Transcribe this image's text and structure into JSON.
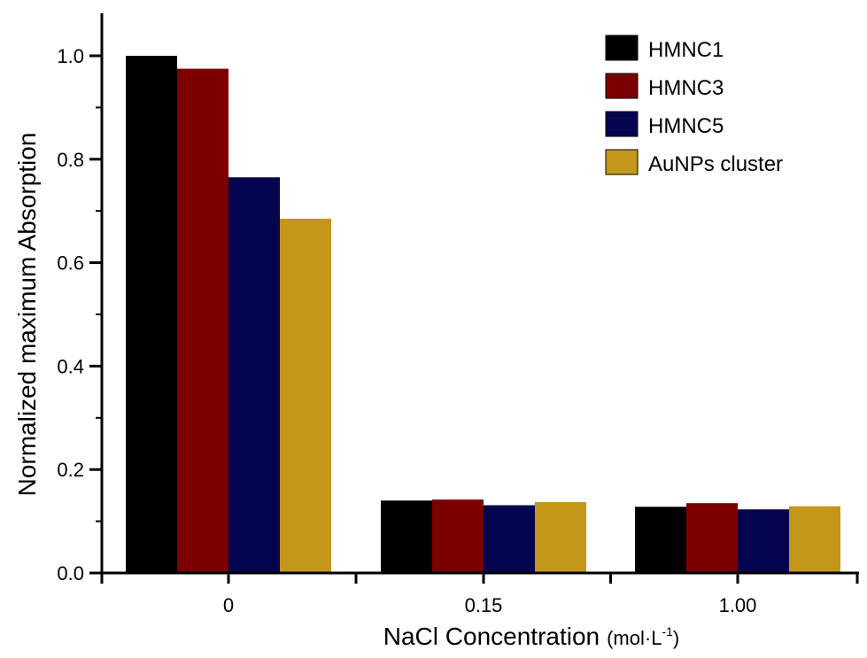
{
  "chart_data": {
    "type": "bar",
    "title": "",
    "xlabel": "NaCl Concentration",
    "xlabel_unit": "(mol·L",
    "xlabel_unit_sup": "-1",
    "xlabel_unit_close": ")",
    "ylabel": "Normalized  maximum Absorption",
    "ylim": [
      0,
      1.0
    ],
    "yticks": [
      0.0,
      0.2,
      0.4,
      0.6,
      0.8,
      1.0
    ],
    "ytick_labels": [
      "0.0",
      "0.2",
      "0.4",
      "0.6",
      "0.8",
      "1.0"
    ],
    "categories": [
      "0",
      "0.15",
      "1.00"
    ],
    "legend_position": "top-right",
    "grid": false,
    "series": [
      {
        "name": "HMNC1",
        "color": "#000000",
        "values": [
          1.0,
          0.14,
          0.128
        ]
      },
      {
        "name": "HMNC3",
        "color": "#7b0000",
        "values": [
          0.975,
          0.142,
          0.135
        ]
      },
      {
        "name": "HMNC5",
        "color": "#05054f",
        "values": [
          0.765,
          0.131,
          0.123
        ]
      },
      {
        "name": "AuNPs cluster",
        "color": "#c4961a",
        "values": [
          0.685,
          0.137,
          0.129
        ]
      }
    ]
  }
}
